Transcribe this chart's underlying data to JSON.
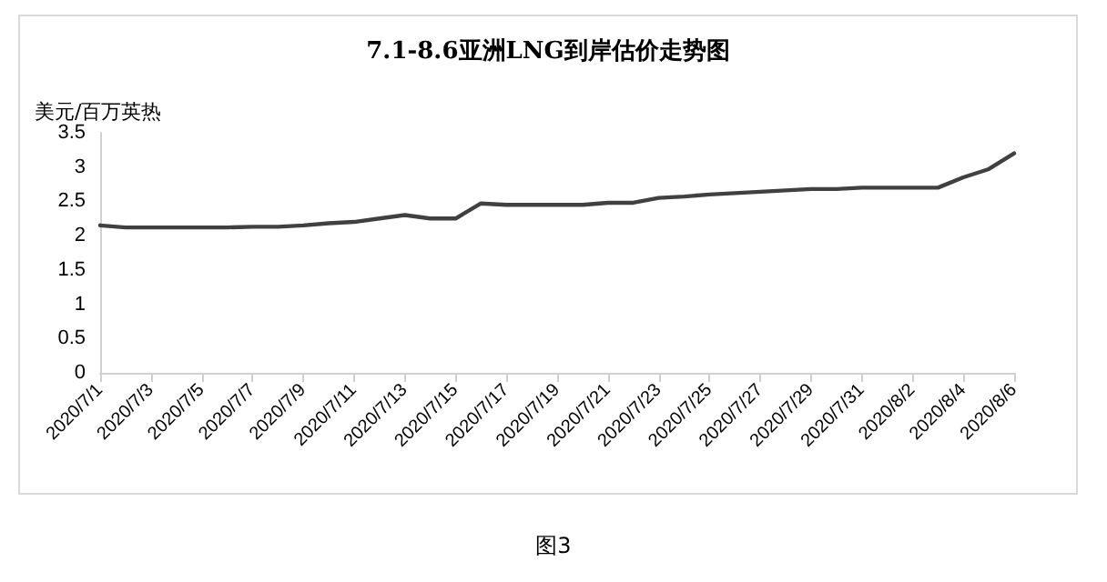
{
  "chart_data": {
    "type": "line",
    "title": "7.1-8.6亚洲LNG到岸估价走势图",
    "ylabel": "美元/百万英热",
    "categories": [
      "2020/7/1",
      null,
      "2020/7/3",
      null,
      "2020/7/5",
      null,
      "2020/7/7",
      null,
      "2020/7/9",
      null,
      "2020/7/11",
      null,
      "2020/7/13",
      null,
      "2020/7/15",
      null,
      "2020/7/17",
      null,
      "2020/7/19",
      null,
      "2020/7/21",
      null,
      "2020/7/23",
      null,
      "2020/7/25",
      null,
      "2020/7/27",
      null,
      "2020/7/29",
      null,
      "2020/7/31",
      null,
      "2020/8/2",
      null,
      "2020/8/4",
      null,
      "2020/8/6"
    ],
    "series": [
      {
        "color": "#404040",
        "values": [
          2.15,
          2.12,
          2.12,
          2.12,
          2.12,
          2.12,
          2.13,
          2.13,
          2.15,
          2.18,
          2.2,
          2.25,
          2.3,
          2.25,
          2.25,
          2.47,
          2.45,
          2.45,
          2.45,
          2.45,
          2.48,
          2.48,
          2.55,
          2.57,
          2.6,
          2.62,
          2.64,
          2.66,
          2.68,
          2.68,
          2.7,
          2.7,
          2.7,
          2.7,
          2.85,
          2.97,
          3.2
        ]
      }
    ],
    "ylim": [
      0,
      3.5
    ],
    "yticks": [
      0,
      0.5,
      1,
      1.5,
      2,
      2.5,
      3,
      3.5
    ],
    "grid": false,
    "marker": "none",
    "line_style": "solid",
    "annotations": [
      "图3"
    ]
  }
}
